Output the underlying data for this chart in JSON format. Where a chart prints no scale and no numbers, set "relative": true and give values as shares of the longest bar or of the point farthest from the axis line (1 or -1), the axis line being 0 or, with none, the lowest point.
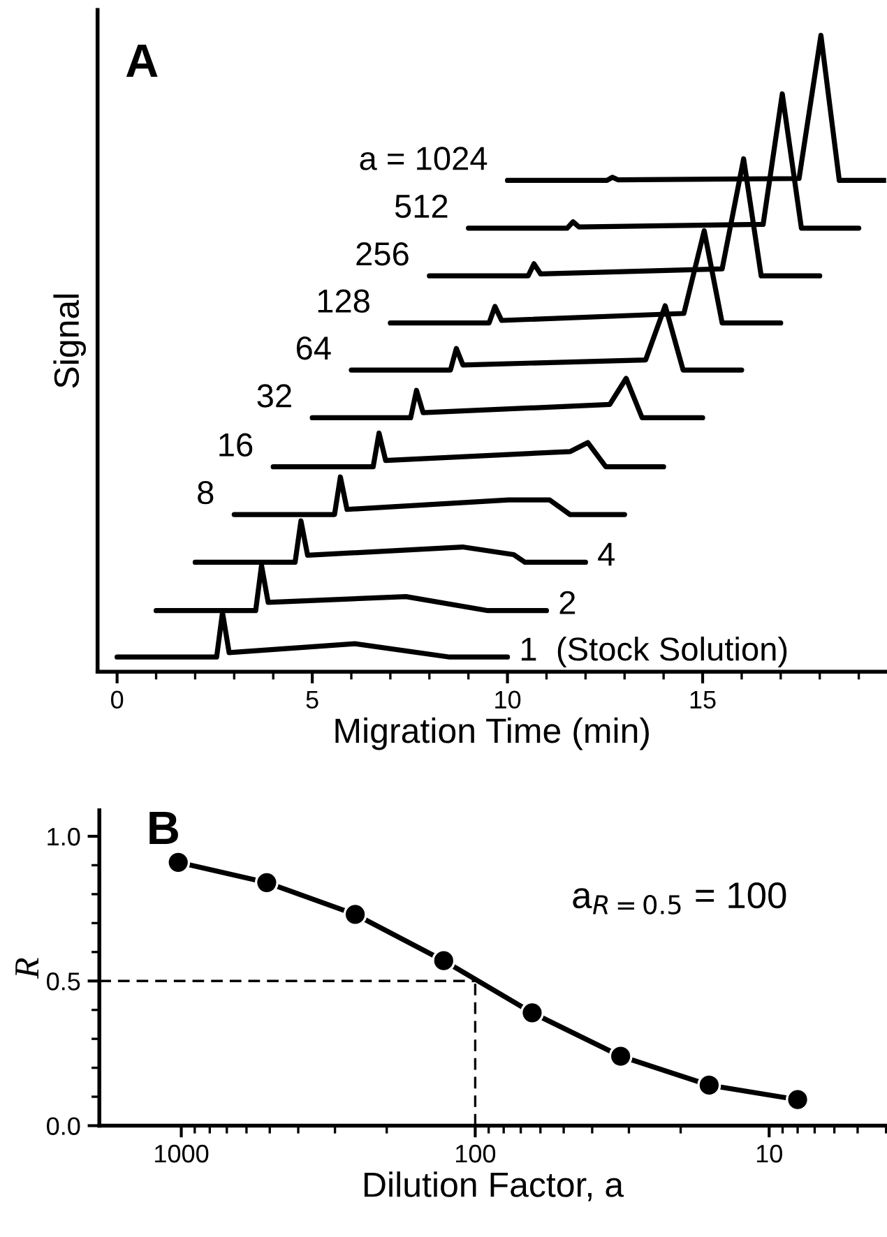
{
  "chart_data": [
    {
      "type": "line",
      "title": "A",
      "xlabel": "Migration Time (min)",
      "ylabel": "Signal",
      "relative": true,
      "tick_labels": "x",
      "xlim": [
        -0.5,
        19.7
      ],
      "xticks": [
        0,
        5,
        10,
        15
      ],
      "grid": false,
      "legend": false,
      "marker": "none",
      "line_style": "solid",
      "series": [
        {
          "name": "1  (Stock Solution)",
          "color": "#000000",
          "x": [
            0,
            2.55,
            2.7,
            2.87,
            6.09,
            8.52,
            10
          ],
          "values": [
            0.023,
            0.023,
            0.093,
            0.03,
            0.044,
            0.023,
            0.023
          ]
        },
        {
          "name": "2",
          "color": "#000000",
          "x": [
            1,
            3.55,
            3.7,
            3.87,
            7.4,
            9.5,
            11
          ],
          "values": [
            0.096,
            0.096,
            0.167,
            0.109,
            0.118,
            0.096,
            0.096
          ]
        },
        {
          "name": "4",
          "color": "#000000",
          "x": [
            2,
            4.56,
            4.71,
            4.88,
            8.85,
            10.16,
            10.45,
            12
          ],
          "values": [
            0.172,
            0.172,
            0.237,
            0.183,
            0.196,
            0.184,
            0.172,
            0.172
          ]
        },
        {
          "name": "8",
          "color": "#000000",
          "x": [
            3,
            5.57,
            5.72,
            5.89,
            10.03,
            11.08,
            11.6,
            13
          ],
          "values": [
            0.247,
            0.247,
            0.306,
            0.255,
            0.27,
            0.27,
            0.247,
            0.247
          ]
        },
        {
          "name": "16",
          "color": "#000000",
          "x": [
            4,
            6.56,
            6.71,
            6.88,
            11.61,
            12.06,
            12.52,
            14
          ],
          "values": [
            0.322,
            0.322,
            0.375,
            0.332,
            0.346,
            0.36,
            0.322,
            0.322
          ]
        },
        {
          "name": "32",
          "color": "#000000",
          "x": [
            5,
            7.52,
            7.67,
            7.84,
            12.62,
            13.04,
            13.45,
            15
          ],
          "values": [
            0.399,
            0.399,
            0.442,
            0.407,
            0.42,
            0.461,
            0.399,
            0.399
          ]
        },
        {
          "name": "64",
          "color": "#000000",
          "x": [
            6,
            8.54,
            8.69,
            8.86,
            13.54,
            14.04,
            14.5,
            16
          ],
          "values": [
            0.474,
            0.474,
            0.508,
            0.482,
            0.49,
            0.575,
            0.474,
            0.474
          ]
        },
        {
          "name": "128",
          "color": "#000000",
          "x": [
            7,
            9.53,
            9.68,
            9.85,
            14.52,
            15.04,
            15.5,
            17
          ],
          "values": [
            0.548,
            0.548,
            0.574,
            0.552,
            0.563,
            0.693,
            0.548,
            0.548
          ]
        },
        {
          "name": "256",
          "color": "#000000",
          "x": [
            8,
            10.53,
            10.68,
            10.85,
            15.5,
            16.05,
            16.5,
            18
          ],
          "values": [
            0.622,
            0.622,
            0.641,
            0.625,
            0.633,
            0.806,
            0.622,
            0.622
          ]
        },
        {
          "name": "512",
          "color": "#000000",
          "x": [
            9,
            11.53,
            11.68,
            11.83,
            16.55,
            17.04,
            17.53,
            19
          ],
          "values": [
            0.697,
            0.697,
            0.707,
            0.699,
            0.703,
            0.908,
            0.697,
            0.697
          ]
        },
        {
          "name": "a = 1024",
          "color": "#000000",
          "x": [
            10,
            12.55,
            12.69,
            12.83,
            17.47,
            18.03,
            18.5,
            19.7
          ],
          "values": [
            0.772,
            0.772,
            0.777,
            0.773,
            0.775,
            1.0,
            0.772,
            0.772
          ]
        }
      ]
    },
    {
      "type": "line",
      "title": "B",
      "xlabel": "Dilution Factor, a",
      "ylabel": "R",
      "log": "x",
      "xlim": [
        1900,
        4
      ],
      "xticks": [
        1000,
        100,
        10
      ],
      "ylim": [
        0,
        1.09
      ],
      "yticks": [
        {
          "value": 0,
          "label": "0.0"
        },
        {
          "value": 0.5,
          "label": "0.5"
        },
        {
          "value": 1,
          "label": "1.0"
        }
      ],
      "grid": false,
      "legend": false,
      "marker": "circle",
      "line_style": "solid",
      "x": [
        1024,
        512,
        256,
        128,
        64,
        32,
        16,
        8
      ],
      "series": [
        {
          "color": "#000000",
          "values": [
            0.91,
            0.84,
            0.73,
            0.57,
            0.39,
            0.24,
            0.14,
            0.09
          ]
        }
      ],
      "ref_lines": [
        {
          "axis": "y",
          "value": 0.5,
          "line_style": "dashed",
          "color": "#000000"
        },
        {
          "axis": "x",
          "value": 100,
          "line_style": "dashed",
          "color": "#000000"
        }
      ],
      "annotations": [
        "a$_{R=0.5}$ = 100"
      ]
    }
  ]
}
